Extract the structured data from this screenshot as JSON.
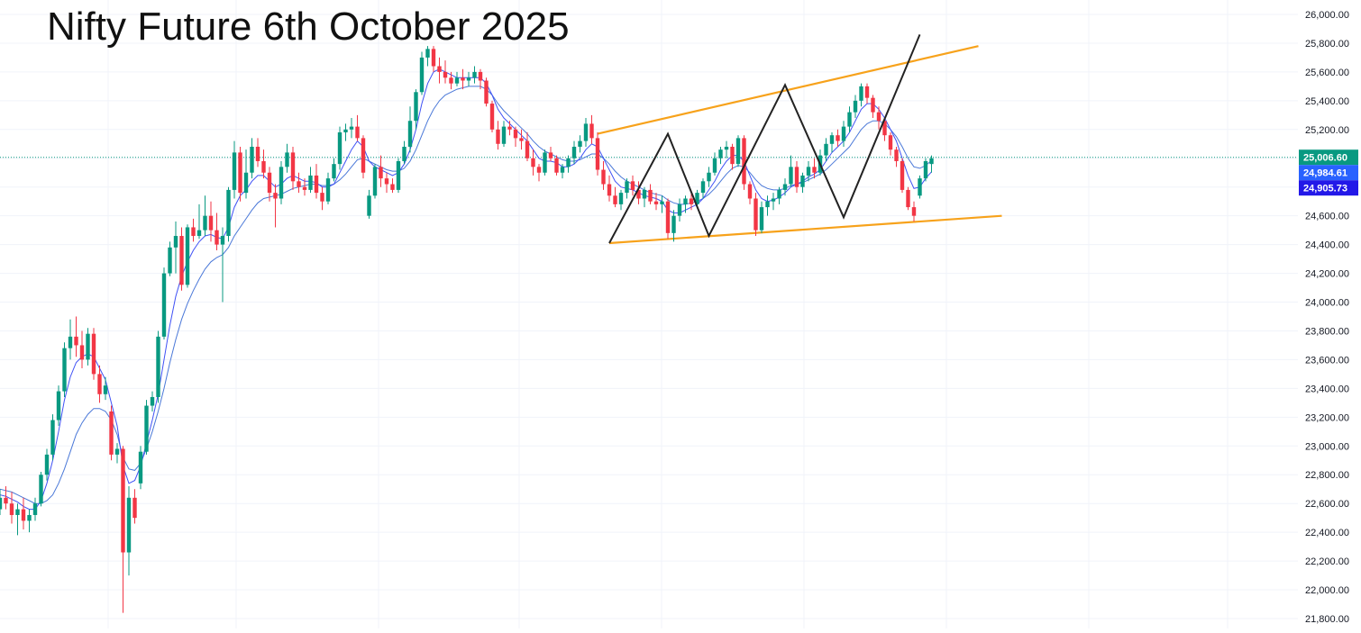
{
  "chart_data": {
    "type": "candlestick",
    "title": "Nifty Future 6th October 2025",
    "ylim": [
      21750,
      26100
    ],
    "y_ticks": [
      "26,000.00",
      "25,800.00",
      "25,600.00",
      "25,400.00",
      "25,200.00",
      "25,000.00",
      "24,800.00",
      "24,600.00",
      "24,400.00",
      "24,200.00",
      "24,000.00",
      "23,800.00",
      "23,600.00",
      "23,400.00",
      "23,200.00",
      "23,000.00",
      "22,800.00",
      "22,600.00",
      "22,400.00",
      "22,200.00",
      "22,000.00",
      "21,800.00"
    ],
    "price_labels": [
      {
        "text": "25,006.60",
        "value": 25006.6,
        "color": "#089981"
      },
      {
        "text": "24,984.61",
        "value": 24984.61,
        "color": "#2962ff"
      },
      {
        "text": "24,905.73",
        "value": 24905.73,
        "color": "#2318e8"
      }
    ],
    "current_price": 25006.6,
    "colors": {
      "up": "#089981",
      "down": "#f23645",
      "ma_fast": "#3f51f5",
      "ma_slow": "#4a78d8",
      "channel": "#f7a21b",
      "pattern": "#222222"
    },
    "candles": [
      [
        22560,
        22700,
        22520,
        22640
      ],
      [
        22640,
        22720,
        22560,
        22600
      ],
      [
        22600,
        22680,
        22460,
        22520
      ],
      [
        22520,
        22600,
        22380,
        22560
      ],
      [
        22560,
        22640,
        22420,
        22480
      ],
      [
        22480,
        22560,
        22400,
        22520
      ],
      [
        22520,
        22640,
        22480,
        22600
      ],
      [
        22600,
        22820,
        22580,
        22800
      ],
      [
        22800,
        22980,
        22760,
        22940
      ],
      [
        22940,
        23220,
        22900,
        23180
      ],
      [
        23180,
        23420,
        23140,
        23380
      ],
      [
        23380,
        23720,
        23340,
        23680
      ],
      [
        23680,
        23880,
        23600,
        23760
      ],
      [
        23760,
        23900,
        23620,
        23700
      ],
      [
        23700,
        23800,
        23540,
        23600
      ],
      [
        23600,
        23820,
        23560,
        23780
      ],
      [
        23780,
        23820,
        23460,
        23500
      ],
      [
        23500,
        23560,
        23300,
        23360
      ],
      [
        23360,
        23480,
        23320,
        23420
      ],
      [
        23240,
        23280,
        22900,
        22940
      ],
      [
        22940,
        23020,
        22880,
        22980
      ],
      [
        22980,
        23000,
        21840,
        22260
      ],
      [
        22260,
        22720,
        22100,
        22640
      ],
      [
        22640,
        22700,
        22460,
        22500
      ],
      [
        22740,
        23000,
        22700,
        22960
      ],
      [
        22960,
        23320,
        22940,
        23280
      ],
      [
        23280,
        23380,
        23240,
        23340
      ],
      [
        23340,
        23800,
        23300,
        23760
      ],
      [
        23760,
        24240,
        23740,
        24200
      ],
      [
        24200,
        24420,
        24180,
        24380
      ],
      [
        24380,
        24560,
        24200,
        24460
      ],
      [
        24460,
        24520,
        24080,
        24120
      ],
      [
        24120,
        24540,
        24100,
        24520
      ],
      [
        24520,
        24580,
        24420,
        24460
      ],
      [
        24460,
        24680,
        24440,
        24500
      ],
      [
        24500,
        24740,
        24460,
        24600
      ],
      [
        24600,
        24700,
        24420,
        24500
      ],
      [
        24500,
        24620,
        24360,
        24400
      ],
      [
        24400,
        24520,
        24000,
        24460
      ],
      [
        24460,
        24800,
        24420,
        24780
      ],
      [
        24780,
        25120,
        24720,
        25040
      ],
      [
        25040,
        25080,
        24700,
        24760
      ],
      [
        24760,
        25060,
        24720,
        24900
      ],
      [
        24900,
        25140,
        24860,
        25080
      ],
      [
        25080,
        25140,
        24940,
        24980
      ],
      [
        24980,
        25060,
        24860,
        24900
      ],
      [
        24900,
        24940,
        24700,
        24760
      ],
      [
        24760,
        24820,
        24520,
        24720
      ],
      [
        24720,
        24980,
        24680,
        24940
      ],
      [
        24940,
        25100,
        24900,
        25040
      ],
      [
        25040,
        25080,
        24780,
        24840
      ],
      [
        24840,
        24900,
        24760,
        24800
      ],
      [
        24800,
        24860,
        24740,
        24780
      ],
      [
        24780,
        24940,
        24760,
        24880
      ],
      [
        24880,
        24960,
        24720,
        24760
      ],
      [
        24760,
        24800,
        24640,
        24700
      ],
      [
        24700,
        24900,
        24680,
        24860
      ],
      [
        24860,
        25000,
        24840,
        24960
      ],
      [
        24960,
        25220,
        24920,
        25180
      ],
      [
        25180,
        25240,
        25120,
        25200
      ],
      [
        25200,
        25280,
        25140,
        25220
      ],
      [
        25220,
        25300,
        25120,
        25140
      ],
      [
        25140,
        25160,
        24860,
        24900
      ],
      [
        24600,
        24780,
        24580,
        24740
      ],
      [
        24740,
        24960,
        24720,
        24940
      ],
      [
        24940,
        25020,
        24800,
        24860
      ],
      [
        24860,
        24900,
        24760,
        24820
      ],
      [
        24820,
        24860,
        24760,
        24780
      ],
      [
        24780,
        25000,
        24760,
        24980
      ],
      [
        24980,
        25120,
        24960,
        25080
      ],
      [
        25080,
        25360,
        25040,
        25260
      ],
      [
        25260,
        25480,
        25200,
        25460
      ],
      [
        25460,
        25740,
        25440,
        25700
      ],
      [
        25700,
        25780,
        25640,
        25760
      ],
      [
        25760,
        25780,
        25600,
        25640
      ],
      [
        25640,
        25700,
        25520,
        25600
      ],
      [
        25600,
        25680,
        25520,
        25560
      ],
      [
        25560,
        25600,
        25480,
        25520
      ],
      [
        25520,
        25600,
        25500,
        25560
      ],
      [
        25560,
        25620,
        25480,
        25540
      ],
      [
        25540,
        25600,
        25500,
        25560
      ],
      [
        25560,
        25640,
        25520,
        25600
      ],
      [
        25600,
        25620,
        25480,
        25540
      ],
      [
        25540,
        25560,
        25360,
        25380
      ],
      [
        25380,
        25400,
        25180,
        25200
      ],
      [
        25200,
        25260,
        25060,
        25100
      ],
      [
        25100,
        25260,
        25080,
        25220
      ],
      [
        25220,
        25260,
        25160,
        25200
      ],
      [
        25200,
        25220,
        25080,
        25140
      ],
      [
        25140,
        25200,
        25060,
        25120
      ],
      [
        25120,
        25180,
        24980,
        25000
      ],
      [
        25000,
        25060,
        24880,
        24940
      ],
      [
        24940,
        24960,
        24840,
        24900
      ],
      [
        24900,
        25060,
        24880,
        25040
      ],
      [
        25040,
        25080,
        24980,
        25000
      ],
      [
        25000,
        25020,
        24880,
        24900
      ],
      [
        24900,
        24960,
        24860,
        24940
      ],
      [
        24940,
        25020,
        24900,
        25000
      ],
      [
        25000,
        25120,
        24960,
        25080
      ],
      [
        25080,
        25160,
        25040,
        25120
      ],
      [
        25120,
        25280,
        25080,
        25240
      ],
      [
        25240,
        25300,
        25100,
        25140
      ],
      [
        25140,
        25180,
        24880,
        24920
      ],
      [
        24920,
        24980,
        24780,
        24820
      ],
      [
        24820,
        24880,
        24700,
        24740
      ],
      [
        24740,
        24800,
        24660,
        24680
      ],
      [
        24680,
        24780,
        24640,
        24760
      ],
      [
        24760,
        24860,
        24720,
        24840
      ],
      [
        24840,
        24880,
        24740,
        24780
      ],
      [
        24780,
        24840,
        24680,
        24720
      ],
      [
        24720,
        24800,
        24660,
        24780
      ],
      [
        24780,
        24820,
        24680,
        24700
      ],
      [
        24700,
        24760,
        24640,
        24680
      ],
      [
        24680,
        24740,
        24620,
        24700
      ],
      [
        24700,
        24720,
        24440,
        24480
      ],
      [
        24480,
        24640,
        24420,
        24600
      ],
      [
        24600,
        24720,
        24560,
        24680
      ],
      [
        24680,
        24740,
        24620,
        24720
      ],
      [
        24720,
        24760,
        24640,
        24680
      ],
      [
        24680,
        24780,
        24660,
        24760
      ],
      [
        24760,
        24860,
        24720,
        24840
      ],
      [
        24840,
        24940,
        24800,
        24900
      ],
      [
        24900,
        25040,
        24880,
        25000
      ],
      [
        25000,
        25080,
        24960,
        25060
      ],
      [
        25060,
        25120,
        25000,
        25080
      ],
      [
        25080,
        25100,
        24920,
        24960
      ],
      [
        24960,
        25160,
        24940,
        25140
      ],
      [
        25140,
        25160,
        24780,
        24820
      ],
      [
        24820,
        24840,
        24680,
        24720
      ],
      [
        24720,
        24760,
        24460,
        24500
      ],
      [
        24500,
        24700,
        24480,
        24660
      ],
      [
        24660,
        24740,
        24600,
        24700
      ],
      [
        24700,
        24760,
        24640,
        24720
      ],
      [
        24720,
        24800,
        24680,
        24780
      ],
      [
        24780,
        24860,
        24740,
        24820
      ],
      [
        24820,
        25020,
        24800,
        24940
      ],
      [
        24940,
        24980,
        24760,
        24800
      ],
      [
        24800,
        24900,
        24760,
        24880
      ],
      [
        24880,
        24980,
        24840,
        24940
      ],
      [
        24940,
        25000,
        24860,
        24900
      ],
      [
        24900,
        25060,
        24880,
        25020
      ],
      [
        25020,
        25140,
        24980,
        25100
      ],
      [
        25100,
        25180,
        25040,
        25160
      ],
      [
        25160,
        25200,
        25080,
        25120
      ],
      [
        25120,
        25260,
        25080,
        25220
      ],
      [
        25220,
        25360,
        25180,
        25320
      ],
      [
        25320,
        25440,
        25280,
        25400
      ],
      [
        25400,
        25520,
        25360,
        25500
      ],
      [
        25500,
        25520,
        25380,
        25420
      ],
      [
        25420,
        25440,
        25280,
        25320
      ],
      [
        25320,
        25360,
        25200,
        25260
      ],
      [
        25260,
        25280,
        25120,
        25160
      ],
      [
        25160,
        25180,
        25020,
        25060
      ],
      [
        25060,
        25080,
        24940,
        24980
      ],
      [
        24980,
        25000,
        24760,
        24780
      ],
      [
        24780,
        24800,
        24640,
        24660
      ],
      [
        24660,
        24700,
        24560,
        24600
      ],
      [
        24740,
        24880,
        24720,
        24860
      ],
      [
        24860,
        25000,
        24840,
        24980
      ],
      [
        24960,
        25020,
        24900,
        25000
      ]
    ],
    "ma_fast": [
      22660,
      22650,
      22630,
      22610,
      22580,
      22560,
      22560,
      22620,
      22740,
      22900,
      23100,
      23320,
      23480,
      23580,
      23620,
      23640,
      23620,
      23540,
      23460,
      23300,
      23140,
      22860,
      22740,
      22760,
      22860,
      23020,
      23180,
      23360,
      23600,
      23840,
      24040,
      24180,
      24280,
      24360,
      24420,
      24460,
      24470,
      24450,
      24440,
      24520,
      24660,
      24740,
      24780,
      24840,
      24880,
      24880,
      24840,
      24800,
      24820,
      24860,
      24880,
      24860,
      24840,
      24840,
      24830,
      24800,
      24800,
      24820,
      24900,
      24980,
      25060,
      25120,
      25080,
      24980,
      24940,
      24920,
      24900,
      24880,
      24900,
      24960,
      25060,
      25200,
      25380,
      25520,
      25600,
      25620,
      25600,
      25580,
      25560,
      25560,
      25560,
      25560,
      25560,
      25520,
      25440,
      25340,
      25280,
      25240,
      25200,
      25160,
      25120,
      25060,
      25000,
      24980,
      24980,
      24970,
      24940,
      24940,
      24960,
      25000,
      25060,
      25100,
      25080,
      25000,
      24920,
      24840,
      24800,
      24790,
      24780,
      24760,
      24740,
      24730,
      24720,
      24700,
      24640,
      24620,
      24620,
      24640,
      24660,
      24680,
      24720,
      24780,
      24840,
      24920,
      24980,
      25020,
      25020,
      24980,
      24880,
      24780,
      24720,
      24700,
      24710,
      24730,
      24760,
      24800,
      24820,
      24840,
      24870,
      24890,
      24920,
      24980,
      25040,
      25080,
      25120,
      25180,
      25260,
      25340,
      25380,
      25380,
      25340,
      25280,
      25200,
      25120,
      25000,
      24880,
      24790,
      24800,
      24860,
      24906
    ],
    "ma_slow": [
      22700,
      22690,
      22680,
      22660,
      22640,
      22620,
      22600,
      22600,
      22620,
      22660,
      22740,
      22840,
      22960,
      23080,
      23160,
      23220,
      23260,
      23260,
      23240,
      23180,
      23080,
      22920,
      22840,
      22830,
      22880,
      22980,
      23100,
      23240,
      23400,
      23580,
      23740,
      23880,
      23990,
      24080,
      24160,
      24230,
      24280,
      24310,
      24330,
      24380,
      24460,
      24520,
      24580,
      24640,
      24690,
      24720,
      24730,
      24740,
      24750,
      24770,
      24790,
      24800,
      24810,
      24820,
      24820,
      24810,
      24810,
      24820,
      24850,
      24890,
      24940,
      24990,
      25000,
      24980,
      24960,
      24940,
      24920,
      24910,
      24910,
      24930,
      24980,
      25060,
      25160,
      25260,
      25340,
      25400,
      25440,
      25460,
      25480,
      25490,
      25500,
      25500,
      25500,
      25480,
      25440,
      25380,
      25330,
      25290,
      25250,
      25210,
      25170,
      25120,
      25080,
      25050,
      25030,
      25010,
      24990,
      24980,
      24980,
      24990,
      25010,
      25030,
      25030,
      25000,
      24960,
      24910,
      24870,
      24840,
      24820,
      24800,
      24780,
      24760,
      24750,
      24740,
      24710,
      24690,
      24680,
      24680,
      24690,
      24700,
      24720,
      24750,
      24790,
      24840,
      24890,
      24930,
      24950,
      24940,
      24900,
      24850,
      24810,
      24790,
      24780,
      24780,
      24790,
      24810,
      24820,
      24830,
      24850,
      24870,
      24890,
      24920,
      24960,
      25000,
      25040,
      25080,
      25140,
      25200,
      25240,
      25260,
      25260,
      25240,
      25200,
      25150,
      25080,
      25000,
      24940,
      24930,
      24950,
      24985
    ],
    "channel_lines": [
      {
        "from": [
          102,
          25170
        ],
        "to": [
          167,
          25780
        ]
      },
      {
        "from": [
          104,
          24410
        ],
        "to": [
          171,
          24600
        ]
      }
    ],
    "pattern_line": [
      [
        104,
        24410
      ],
      [
        114,
        25170
      ],
      [
        121,
        24460
      ],
      [
        134,
        25510
      ],
      [
        144,
        24590
      ],
      [
        157,
        25860
      ]
    ]
  }
}
